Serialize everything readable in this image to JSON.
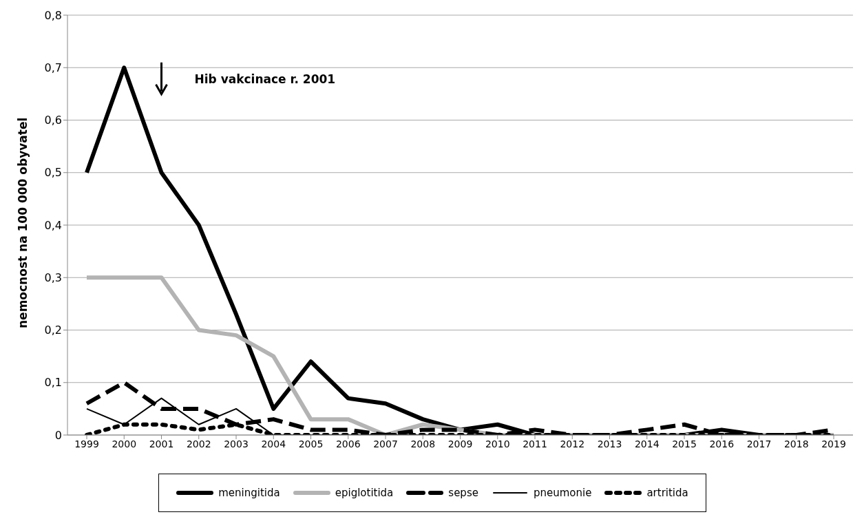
{
  "chart_data": {
    "type": "line",
    "ylabel": "nemocnost na 100 000 obyvatel",
    "categories": [
      "1999",
      "2000",
      "2001",
      "2002",
      "2003",
      "2004",
      "2005",
      "2006",
      "2007",
      "2008",
      "2009",
      "2010",
      "2011",
      "2012",
      "2013",
      "2014",
      "2015",
      "2016",
      "2017",
      "2018",
      "2019"
    ],
    "series": [
      {
        "name": "meningitida",
        "color": "#000000",
        "line_style": "solid",
        "values": [
          0.5,
          0.7,
          0.5,
          0.4,
          0.23,
          0.05,
          0.14,
          0.07,
          0.06,
          0.03,
          0.01,
          0.02,
          0,
          0,
          0,
          0,
          0,
          0.01,
          0,
          0,
          0
        ]
      },
      {
        "name": "epiglotitida",
        "color": "#b3b3b3",
        "line_style": "solid",
        "values": [
          0.3,
          0.3,
          0.3,
          0.2,
          0.19,
          0.15,
          0.03,
          0.03,
          0,
          0.02,
          0.01,
          0,
          0,
          0,
          0,
          0,
          0,
          0,
          0,
          0,
          0
        ]
      },
      {
        "name": "sepse",
        "color": "#000000",
        "line_style": "dashed",
        "values": [
          0.06,
          0.1,
          0.05,
          0.05,
          0.02,
          0.03,
          0.01,
          0.01,
          0,
          0.01,
          0.01,
          0,
          0.01,
          0,
          0,
          0.01,
          0.02,
          0,
          0,
          0,
          0.01
        ]
      },
      {
        "name": "pneumonie",
        "color": "#000000",
        "line_style": "solid",
        "values": [
          0.05,
          0.02,
          0.07,
          0.02,
          0.05,
          0,
          0,
          0,
          0,
          0,
          0,
          0,
          0,
          0,
          0,
          0,
          0,
          0,
          0,
          0,
          0
        ]
      },
      {
        "name": "artritida",
        "color": "#000000",
        "line_style": "dotted",
        "values": [
          0,
          0.02,
          0.02,
          0.01,
          0.02,
          0,
          0,
          0,
          0,
          0,
          0,
          0,
          0,
          0,
          0,
          0,
          0,
          0,
          0,
          0,
          0
        ]
      }
    ],
    "ylim": [
      0,
      0.8
    ],
    "yticks": [
      {
        "value": 0,
        "label": "0"
      },
      {
        "value": 0.1,
        "label": "0,1"
      },
      {
        "value": 0.2,
        "label": "0,2"
      },
      {
        "value": 0.3,
        "label": "0,3"
      },
      {
        "value": 0.4,
        "label": "0,4"
      },
      {
        "value": 0.5,
        "label": "0,5"
      },
      {
        "value": 0.6,
        "label": "0,6"
      },
      {
        "value": 0.7,
        "label": "0,7"
      },
      {
        "value": 0.8,
        "label": "0,8"
      }
    ],
    "grid": "y",
    "legend": "bottom",
    "marker": "none",
    "annotations": [
      {
        "text": "Hib vakcinace r. 2001",
        "x": "2001",
        "y": 0.66
      }
    ]
  }
}
